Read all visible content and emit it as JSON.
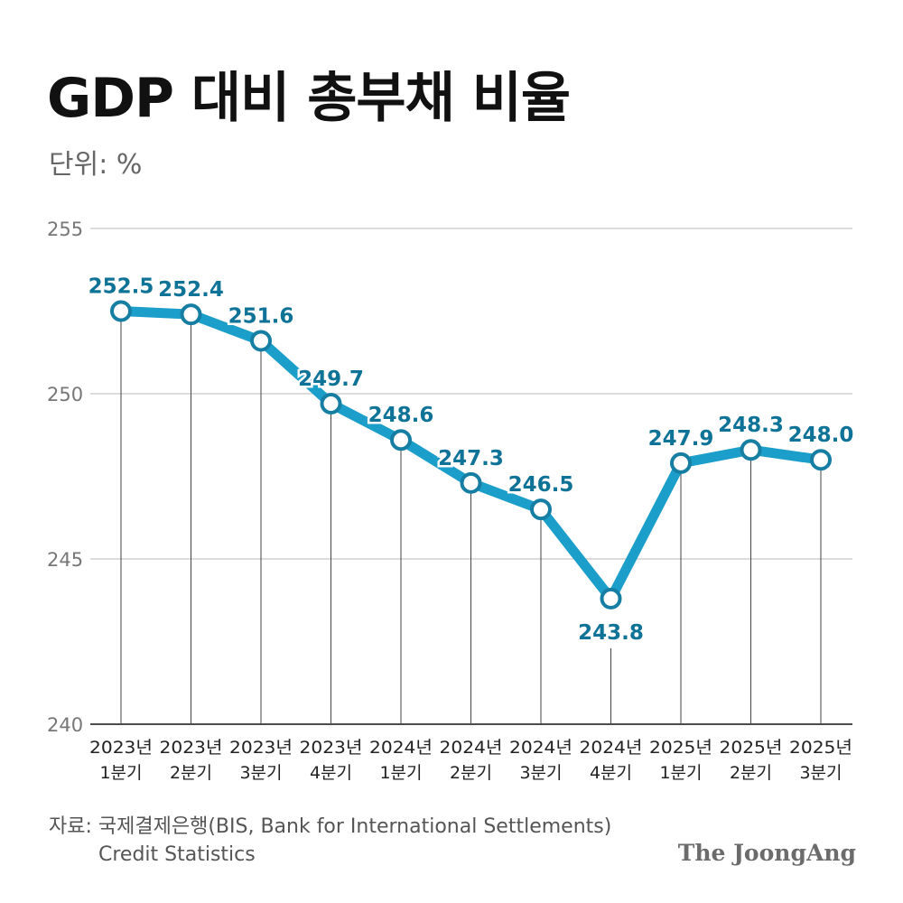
{
  "header": {
    "title": "GDP 대비 총부채 비율",
    "unit": "단위: %"
  },
  "source": {
    "line1": "자료: 국제결제은행(BIS, Bank for International Settlements)",
    "line2": "Credit Statistics"
  },
  "brand": "The JoongAng",
  "colors": {
    "line": "#1b9ec9",
    "label": "#0f7297",
    "marker_fill": "#ffffff",
    "grid": "#c8c8c8",
    "axis": "#333333",
    "title": "#111111"
  },
  "chart_data": {
    "type": "line",
    "title": "GDP 대비 총부채 비율",
    "unit": "단위: %",
    "categories": [
      [
        "2023년",
        "1분기"
      ],
      [
        "2023년",
        "2분기"
      ],
      [
        "2023년",
        "3분기"
      ],
      [
        "2023년",
        "4분기"
      ],
      [
        "2024년",
        "1분기"
      ],
      [
        "2024년",
        "2분기"
      ],
      [
        "2024년",
        "3분기"
      ],
      [
        "2024년",
        "4분기"
      ],
      [
        "2025년",
        "1분기"
      ],
      [
        "2025년",
        "2분기"
      ],
      [
        "2025년",
        "3분기"
      ]
    ],
    "values": [
      252.5,
      252.4,
      251.6,
      249.7,
      248.6,
      247.3,
      246.5,
      243.8,
      247.9,
      248.3,
      248.0
    ],
    "value_labels": [
      "252.5",
      "252.4",
      "251.6",
      "249.7",
      "248.6",
      "247.3",
      "246.5",
      "243.8",
      "247.9",
      "248.3",
      "248.0"
    ],
    "label_positions": [
      "above",
      "above",
      "above",
      "above",
      "above",
      "above",
      "above",
      "below",
      "above",
      "above",
      "above"
    ],
    "yticks": [
      240,
      245,
      250,
      255
    ],
    "ylim": [
      240,
      255
    ],
    "grid": true,
    "legend": "none"
  }
}
